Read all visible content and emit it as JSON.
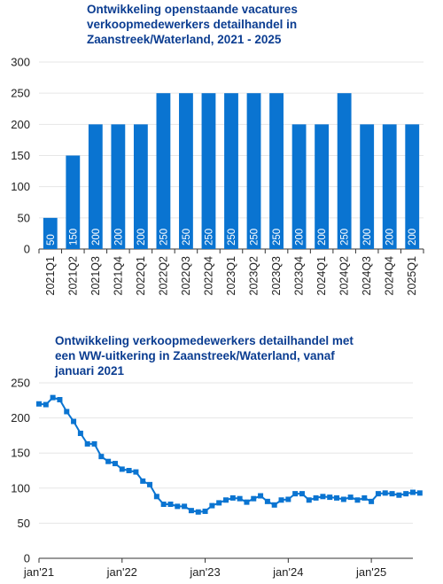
{
  "chart_data": [
    {
      "type": "bar",
      "title": "Ontwikkeling openstaande vacatures\nverkoopmedewerkers detailhandel in\nZaanstreek/Waterland, 2021 - 2025",
      "categories": [
        "2021Q1",
        "2021Q2",
        "2021Q3",
        "2021Q4",
        "2022Q1",
        "2022Q2",
        "2022Q3",
        "2022Q4",
        "2023Q1",
        "2023Q2",
        "2023Q3",
        "2023Q4",
        "2024Q1",
        "2024Q2",
        "2024Q3",
        "2024Q4",
        "2025Q1"
      ],
      "values": [
        50,
        150,
        200,
        200,
        200,
        250,
        250,
        250,
        250,
        250,
        250,
        200,
        200,
        250,
        200,
        200,
        200
      ],
      "data_labels": [
        "50",
        "150",
        "200",
        "200",
        "200",
        "250",
        "250",
        "250",
        "250",
        "250",
        "250",
        "200",
        "200",
        "250",
        "200",
        "200",
        "200"
      ],
      "yticks": [
        "0",
        "50",
        "100",
        "150",
        "200",
        "250",
        "300"
      ],
      "ylim": [
        0,
        300
      ],
      "color": "#0a74d1"
    },
    {
      "type": "line",
      "title": "Ontwikkeling verkoopmedewerkers detailhandel met\neen WW-uitkering in Zaanstreek/Waterland, vanaf\njanuari 2021",
      "x_start": "2021-01",
      "x_end": "2025-07",
      "xticks": [
        "jan'21",
        "jan'22",
        "jan'23",
        "jan'24",
        "jan'25"
      ],
      "yticks": [
        "0",
        "50",
        "100",
        "150",
        "200",
        "250"
      ],
      "ylim": [
        0,
        250
      ],
      "color": "#0a74d1",
      "values": [
        220,
        219,
        229,
        226,
        209,
        195,
        178,
        163,
        163,
        145,
        138,
        135,
        127,
        125,
        123,
        110,
        105,
        88,
        77,
        77,
        74,
        74,
        68,
        66,
        67,
        75,
        79,
        83,
        86,
        85,
        80,
        85,
        89,
        81,
        76,
        83,
        84,
        92,
        92,
        83,
        86,
        88,
        87,
        86,
        84,
        87,
        83,
        86,
        81,
        92,
        93,
        92,
        90,
        92,
        94,
        93
      ]
    }
  ]
}
